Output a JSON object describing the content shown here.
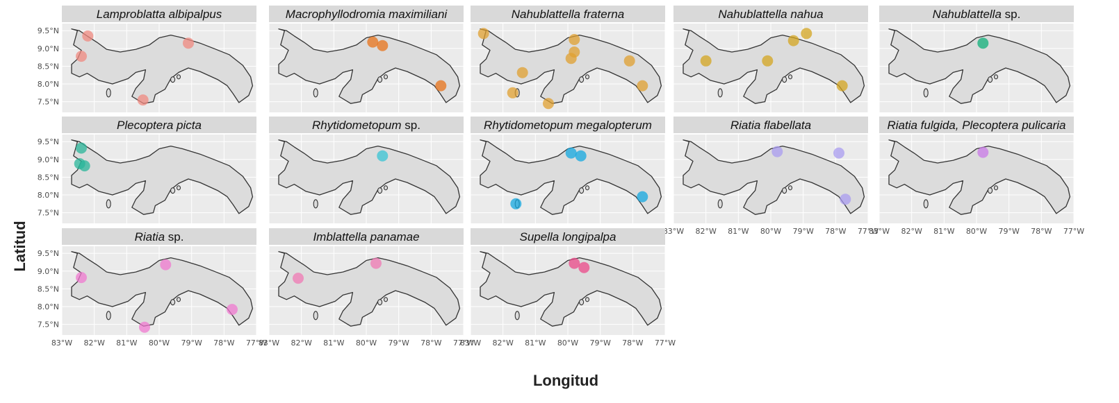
{
  "figure": {
    "x_axis_title": "Longitud",
    "y_axis_title": "Latitud"
  },
  "map_extent": {
    "lon": [
      -83,
      -77
    ],
    "lat": [
      7.2,
      9.7
    ]
  },
  "lat_ticks": [
    {
      "value": 9.5,
      "label": "9.5°N"
    },
    {
      "value": 9.0,
      "label": "9.0°N"
    },
    {
      "value": 8.5,
      "label": "8.5°N"
    },
    {
      "value": 8.0,
      "label": "8.0°N"
    },
    {
      "value": 7.5,
      "label": "7.5°N"
    }
  ],
  "lon_ticks": [
    {
      "value": -83,
      "label": "83°W"
    },
    {
      "value": -82,
      "label": "82°W"
    },
    {
      "value": -81,
      "label": "81°W"
    },
    {
      "value": -80,
      "label": "80°W"
    },
    {
      "value": -79,
      "label": "79°W"
    },
    {
      "value": -78,
      "label": "78°W"
    },
    {
      "value": -77,
      "label": "77°W"
    }
  ],
  "panels": [
    {
      "title": "Lamproblatta albipalpus",
      "title_suffix": "",
      "color": "#f08a80",
      "points": [
        {
          "lon": -82.2,
          "lat": 9.35
        },
        {
          "lon": -82.4,
          "lat": 8.78
        },
        {
          "lon": -79.1,
          "lat": 9.15
        },
        {
          "lon": -80.5,
          "lat": 7.55
        }
      ]
    },
    {
      "title": "Macrophyllodromia maximiliani",
      "title_suffix": "",
      "color": "#e8731a",
      "points": [
        {
          "lon": -79.8,
          "lat": 9.18
        },
        {
          "lon": -79.5,
          "lat": 9.08
        },
        {
          "lon": -77.7,
          "lat": 7.95
        }
      ]
    },
    {
      "title": "Nahublattella fraterna",
      "title_suffix": "",
      "color": "#e0a030",
      "points": [
        {
          "lon": -82.6,
          "lat": 9.42
        },
        {
          "lon": -81.4,
          "lat": 8.32
        },
        {
          "lon": -81.7,
          "lat": 7.75
        },
        {
          "lon": -80.6,
          "lat": 7.45
        },
        {
          "lon": -79.8,
          "lat": 9.25
        },
        {
          "lon": -79.9,
          "lat": 8.72
        },
        {
          "lon": -79.8,
          "lat": 8.9
        },
        {
          "lon": -78.1,
          "lat": 8.65
        },
        {
          "lon": -77.7,
          "lat": 7.95
        }
      ]
    },
    {
      "title": "Nahublattella nahua",
      "title_suffix": "",
      "color": "#d4a520",
      "points": [
        {
          "lon": -82.0,
          "lat": 8.65
        },
        {
          "lon": -80.1,
          "lat": 8.65
        },
        {
          "lon": -79.3,
          "lat": 9.22
        },
        {
          "lon": -78.9,
          "lat": 9.42
        },
        {
          "lon": -77.8,
          "lat": 7.95
        }
      ]
    },
    {
      "title": "Nahublattella",
      "title_suffix": " sp.",
      "color": "#10b07a",
      "points": [
        {
          "lon": -79.8,
          "lat": 9.15
        }
      ]
    },
    {
      "title": "Plecoptera picta",
      "title_suffix": "",
      "color": "#2ab59a",
      "points": [
        {
          "lon": -82.4,
          "lat": 9.32
        },
        {
          "lon": -82.45,
          "lat": 8.88
        },
        {
          "lon": -82.3,
          "lat": 8.82
        }
      ]
    },
    {
      "title": "Rhytidometopum",
      "title_suffix": " sp.",
      "color": "#38c4d4",
      "points": [
        {
          "lon": -79.5,
          "lat": 9.1
        }
      ]
    },
    {
      "title": "Rhytidometopum megalopterum",
      "title_suffix": "",
      "color": "#14a8e0",
      "points": [
        {
          "lon": -79.9,
          "lat": 9.18
        },
        {
          "lon": -79.6,
          "lat": 9.1
        },
        {
          "lon": -81.6,
          "lat": 7.75
        },
        {
          "lon": -77.7,
          "lat": 7.95
        }
      ]
    },
    {
      "title": "Riatia flabellata",
      "title_suffix": "",
      "color": "#a99cf0",
      "points": [
        {
          "lon": -79.8,
          "lat": 9.22
        },
        {
          "lon": -77.9,
          "lat": 9.18
        },
        {
          "lon": -77.7,
          "lat": 7.88
        }
      ]
    },
    {
      "title": "Riatia fulgida, Plecoptera pulicaria",
      "title_suffix": "",
      "color": "#c97ae8",
      "points": [
        {
          "lon": -79.8,
          "lat": 9.2
        }
      ]
    },
    {
      "title": "Riatia",
      "title_suffix": " sp.",
      "color": "#f07ad0",
      "points": [
        {
          "lon": -82.4,
          "lat": 8.82
        },
        {
          "lon": -79.8,
          "lat": 9.18
        },
        {
          "lon": -80.45,
          "lat": 7.42
        },
        {
          "lon": -77.75,
          "lat": 7.92
        }
      ]
    },
    {
      "title": "Imblattella panamae",
      "title_suffix": "",
      "color": "#f07ab4",
      "points": [
        {
          "lon": -82.1,
          "lat": 8.8
        },
        {
          "lon": -79.7,
          "lat": 9.22
        }
      ]
    },
    {
      "title": "Supella longipalpa",
      "title_suffix": "",
      "color": "#ec4a8a",
      "points": [
        {
          "lon": -79.8,
          "lat": 9.22
        },
        {
          "lon": -79.5,
          "lat": 9.1
        }
      ]
    }
  ]
}
